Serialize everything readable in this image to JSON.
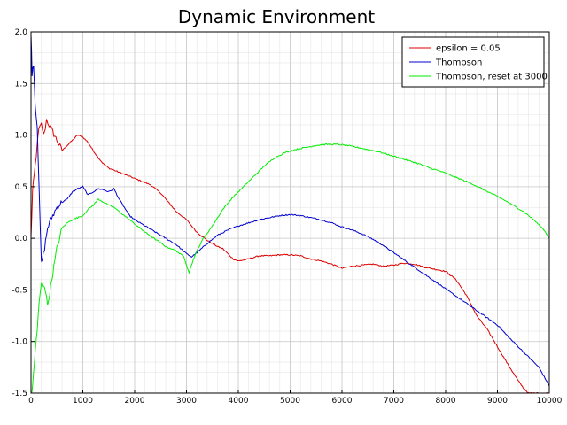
{
  "chart_data": {
    "type": "line",
    "title": "Dynamic Environment",
    "xlabel": "",
    "ylabel": "",
    "xlim": [
      0,
      10000
    ],
    "ylim": [
      -1.5,
      2.0
    ],
    "xticks": [
      0,
      1000,
      2000,
      3000,
      4000,
      5000,
      6000,
      7000,
      8000,
      9000,
      10000
    ],
    "yticks": [
      -1.5,
      -1.0,
      -0.5,
      0.0,
      0.5,
      1.0,
      1.5,
      2.0
    ],
    "ytick_labels": [
      "-1.5",
      "-1.0",
      "-0.5",
      "0.0",
      "0.5",
      "1.0",
      "1.5",
      "2.0"
    ],
    "grid": true,
    "minor_grid": true,
    "legend_position": "top-right",
    "series": [
      {
        "name": "epsilon = 0.05",
        "color": "#dd0000",
        "x": [
          0,
          30,
          60,
          100,
          150,
          200,
          250,
          300,
          350,
          400,
          500,
          600,
          700,
          800,
          900,
          1000,
          1100,
          1200,
          1300,
          1400,
          1500,
          1600,
          1700,
          1800,
          1900,
          2000,
          2100,
          2200,
          2300,
          2400,
          2500,
          2600,
          2700,
          2800,
          2900,
          3000,
          3100,
          3200,
          3300,
          3400,
          3500,
          3600,
          3700,
          3800,
          3900,
          4000,
          4200,
          4400,
          4600,
          4800,
          5000,
          5200,
          5400,
          5600,
          5800,
          6000,
          6200,
          6400,
          6600,
          6800,
          7000,
          7200,
          7400,
          7600,
          7800,
          8000,
          8200,
          8400,
          8600,
          8800,
          9000,
          9200,
          9400,
          9500,
          9600,
          10000
        ],
        "values": [
          0.0,
          0.45,
          0.6,
          0.8,
          1.05,
          1.1,
          1.0,
          1.15,
          1.1,
          1.05,
          0.95,
          0.85,
          0.9,
          0.95,
          1.0,
          0.98,
          0.93,
          0.85,
          0.78,
          0.72,
          0.68,
          0.66,
          0.64,
          0.62,
          0.6,
          0.58,
          0.56,
          0.54,
          0.52,
          0.48,
          0.44,
          0.38,
          0.32,
          0.26,
          0.22,
          0.18,
          0.12,
          0.06,
          0.02,
          -0.02,
          -0.05,
          -0.08,
          -0.1,
          -0.15,
          -0.2,
          -0.22,
          -0.2,
          -0.17,
          -0.17,
          -0.16,
          -0.16,
          -0.17,
          -0.2,
          -0.22,
          -0.25,
          -0.29,
          -0.27,
          -0.26,
          -0.25,
          -0.27,
          -0.26,
          -0.24,
          -0.25,
          -0.28,
          -0.3,
          -0.32,
          -0.4,
          -0.55,
          -0.75,
          -0.88,
          -1.05,
          -1.22,
          -1.38,
          -1.45,
          -1.5,
          -1.5
        ]
      },
      {
        "name": "Thompson",
        "color": "#0000cc",
        "x": [
          0,
          20,
          50,
          80,
          120,
          160,
          200,
          260,
          320,
          400,
          500,
          600,
          700,
          800,
          900,
          1000,
          1100,
          1200,
          1300,
          1400,
          1500,
          1600,
          1700,
          1800,
          1900,
          2000,
          2200,
          2400,
          2600,
          2800,
          3000,
          3100,
          3200,
          3400,
          3600,
          3800,
          4000,
          4200,
          4400,
          4600,
          4800,
          5000,
          5200,
          5400,
          5600,
          5800,
          6000,
          6200,
          6400,
          6600,
          6800,
          7000,
          7200,
          7400,
          7600,
          7800,
          8000,
          8200,
          8400,
          8600,
          8800,
          9000,
          9200,
          9400,
          9600,
          9800,
          10000
        ],
        "values": [
          2.0,
          1.6,
          1.7,
          1.3,
          1.1,
          0.4,
          -0.25,
          -0.1,
          0.1,
          0.2,
          0.3,
          0.35,
          0.38,
          0.45,
          0.48,
          0.5,
          0.42,
          0.45,
          0.48,
          0.47,
          0.45,
          0.48,
          0.38,
          0.3,
          0.22,
          0.18,
          0.12,
          0.06,
          0.0,
          -0.06,
          -0.15,
          -0.18,
          -0.14,
          -0.05,
          0.03,
          0.08,
          0.12,
          0.15,
          0.18,
          0.2,
          0.22,
          0.23,
          0.22,
          0.2,
          0.18,
          0.15,
          0.11,
          0.08,
          0.04,
          -0.01,
          -0.07,
          -0.14,
          -0.21,
          -0.28,
          -0.35,
          -0.42,
          -0.49,
          -0.56,
          -0.63,
          -0.7,
          -0.77,
          -0.84,
          -0.95,
          -1.05,
          -1.15,
          -1.25,
          -1.43
        ]
      },
      {
        "name": "Thompson, reset at 3000",
        "color": "#00ee00",
        "x": [
          0,
          20,
          50,
          80,
          120,
          160,
          200,
          260,
          320,
          400,
          500,
          600,
          700,
          800,
          900,
          1000,
          1100,
          1200,
          1300,
          1400,
          1500,
          1600,
          1700,
          1800,
          1900,
          2000,
          2200,
          2400,
          2600,
          2800,
          2950,
          3050,
          3150,
          3300,
          3500,
          3700,
          3900,
          4100,
          4300,
          4500,
          4700,
          4900,
          5100,
          5300,
          5500,
          5700,
          5900,
          6100,
          6300,
          6500,
          6700,
          6900,
          7100,
          7300,
          7500,
          7700,
          7900,
          8100,
          8300,
          8500,
          8700,
          8900,
          9100,
          9300,
          9500,
          9700,
          9900,
          10000
        ],
        "values": [
          -1.5,
          -1.5,
          -1.3,
          -1.1,
          -0.9,
          -0.6,
          -0.45,
          -0.45,
          -0.65,
          -0.4,
          -0.1,
          0.1,
          0.15,
          0.18,
          0.2,
          0.22,
          0.28,
          0.32,
          0.38,
          0.35,
          0.32,
          0.3,
          0.26,
          0.22,
          0.18,
          0.14,
          0.06,
          -0.01,
          -0.08,
          -0.12,
          -0.18,
          -0.33,
          -0.18,
          -0.02,
          0.12,
          0.28,
          0.4,
          0.5,
          0.6,
          0.7,
          0.78,
          0.83,
          0.86,
          0.88,
          0.9,
          0.91,
          0.91,
          0.9,
          0.88,
          0.86,
          0.84,
          0.81,
          0.78,
          0.75,
          0.72,
          0.68,
          0.65,
          0.61,
          0.57,
          0.53,
          0.48,
          0.43,
          0.38,
          0.32,
          0.26,
          0.18,
          0.08,
          0.0
        ]
      }
    ]
  }
}
